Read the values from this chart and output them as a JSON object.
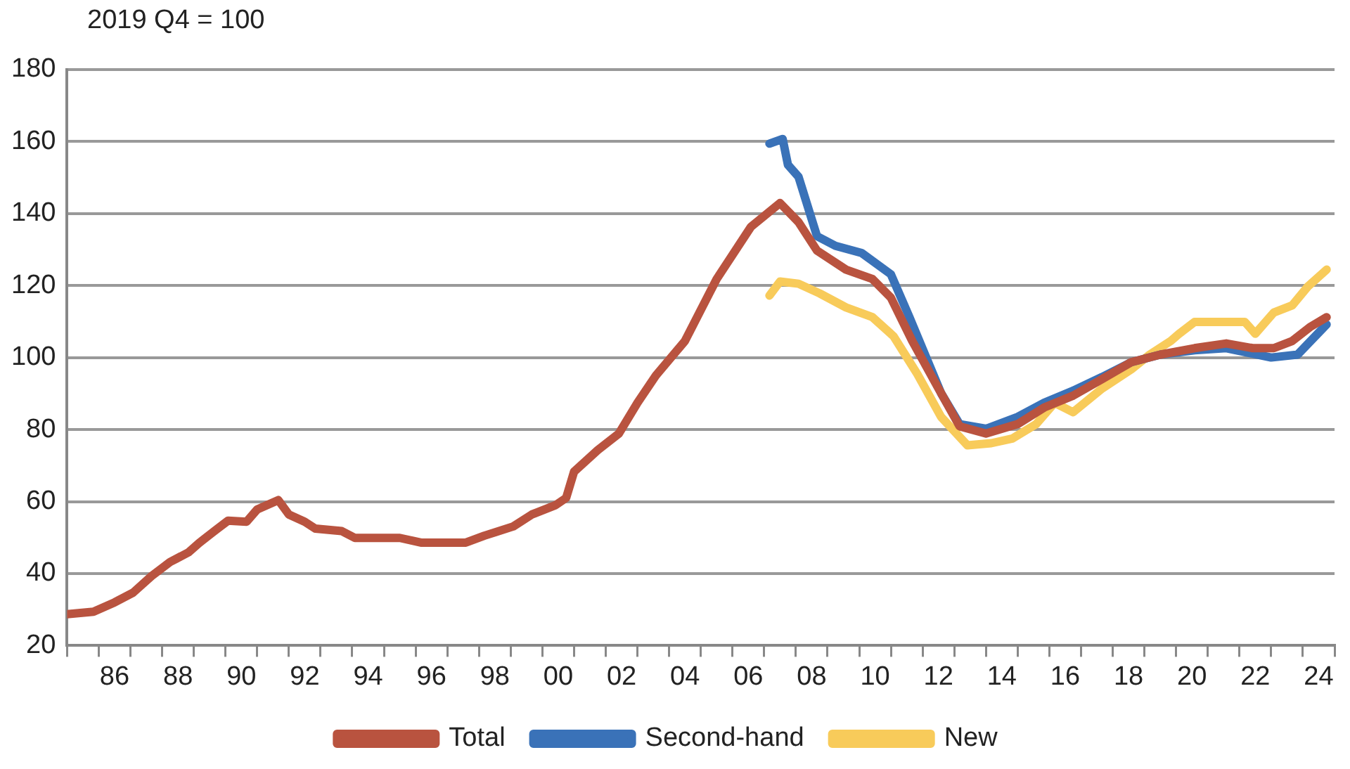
{
  "chart_data": {
    "type": "line",
    "ylabel": "2019 Q4 = 100",
    "legend": "bottom",
    "grid": "y",
    "xlim": [
      "1985-01",
      "2025-01"
    ],
    "ylim": [
      20,
      180
    ],
    "yticks": [
      20,
      40,
      60,
      80,
      100,
      120,
      140,
      160,
      180
    ],
    "xticks": [
      {
        "value": "1986-07",
        "label": "86"
      },
      {
        "value": "1988-07",
        "label": "88"
      },
      {
        "value": "1990-07",
        "label": "90"
      },
      {
        "value": "1992-07",
        "label": "92"
      },
      {
        "value": "1994-07",
        "label": "94"
      },
      {
        "value": "1996-07",
        "label": "96"
      },
      {
        "value": "1998-07",
        "label": "98"
      },
      {
        "value": "2000-07",
        "label": "00"
      },
      {
        "value": "2002-07",
        "label": "02"
      },
      {
        "value": "2004-07",
        "label": "04"
      },
      {
        "value": "2006-07",
        "label": "06"
      },
      {
        "value": "2008-07",
        "label": "08"
      },
      {
        "value": "2010-07",
        "label": "10"
      },
      {
        "value": "2012-07",
        "label": "12"
      },
      {
        "value": "2014-07",
        "label": "14"
      },
      {
        "value": "2016-07",
        "label": "16"
      },
      {
        "value": "2018-07",
        "label": "18"
      },
      {
        "value": "2020-07",
        "label": "20"
      },
      {
        "value": "2022-07",
        "label": "22"
      },
      {
        "value": "2024-07",
        "label": "24"
      },
      {
        "value": "1985-01",
        "label": null
      },
      {
        "value": "1986-01",
        "label": null
      },
      {
        "value": "1987-01",
        "label": null
      },
      {
        "value": "1988-01",
        "label": null
      },
      {
        "value": "1989-01",
        "label": null
      },
      {
        "value": "1990-01",
        "label": null
      },
      {
        "value": "1991-01",
        "label": null
      },
      {
        "value": "1992-01",
        "label": null
      },
      {
        "value": "1993-01",
        "label": null
      },
      {
        "value": "1994-01",
        "label": null
      },
      {
        "value": "1995-01",
        "label": null
      },
      {
        "value": "1996-01",
        "label": null
      },
      {
        "value": "1997-01",
        "label": null
      },
      {
        "value": "1998-01",
        "label": null
      },
      {
        "value": "1999-01",
        "label": null
      },
      {
        "value": "2000-01",
        "label": null
      },
      {
        "value": "2001-01",
        "label": null
      },
      {
        "value": "2002-01",
        "label": null
      },
      {
        "value": "2003-01",
        "label": null
      },
      {
        "value": "2004-01",
        "label": null
      },
      {
        "value": "2005-01",
        "label": null
      },
      {
        "value": "2006-01",
        "label": null
      },
      {
        "value": "2007-01",
        "label": null
      },
      {
        "value": "2008-01",
        "label": null
      },
      {
        "value": "2009-01",
        "label": null
      },
      {
        "value": "2010-01",
        "label": null
      },
      {
        "value": "2011-01",
        "label": null
      },
      {
        "value": "2012-01",
        "label": null
      },
      {
        "value": "2013-01",
        "label": null
      },
      {
        "value": "2014-01",
        "label": null
      },
      {
        "value": "2015-01",
        "label": null
      },
      {
        "value": "2016-01",
        "label": null
      },
      {
        "value": "2017-01",
        "label": null
      },
      {
        "value": "2018-01",
        "label": null
      },
      {
        "value": "2019-01",
        "label": null
      },
      {
        "value": "2020-01",
        "label": null
      },
      {
        "value": "2021-01",
        "label": null
      },
      {
        "value": "2022-01",
        "label": null
      },
      {
        "value": "2023-01",
        "label": null
      },
      {
        "value": "2024-01",
        "label": null
      },
      {
        "value": "2025-01",
        "label": null
      }
    ],
    "series": [
      {
        "name": "Total",
        "color": "#b9533f",
        "x": [
          "1985-01",
          "1985-11",
          "1986-07",
          "1987-02",
          "1987-09",
          "1988-04",
          "1988-11",
          "1989-03",
          "1989-10",
          "1990-02",
          "1990-09",
          "1991-01",
          "1991-09",
          "1992-01",
          "1992-07",
          "1992-11",
          "1993-09",
          "1994-02",
          "1995-07",
          "1996-03",
          "1997-08",
          "1998-03",
          "1999-02",
          "1999-09",
          "2000-06",
          "2000-10",
          "2001-01",
          "2001-10",
          "2002-06",
          "2003-01",
          "2003-08",
          "2004-07",
          "2005-07",
          "2006-08",
          "2007-07",
          "2008-02",
          "2008-09",
          "2009-08",
          "2010-06",
          "2011-01",
          "2011-09",
          "2012-07",
          "2013-03",
          "2014-01",
          "2015-01",
          "2015-11",
          "2016-10",
          "2017-09",
          "2018-08",
          "2019-07",
          "2020-08",
          "2021-08",
          "2022-06",
          "2023-02",
          "2023-09",
          "2024-04",
          "2024-10"
        ],
        "values": [
          28.7,
          29.4,
          32,
          34.7,
          39.3,
          43.2,
          45.9,
          48.5,
          52.5,
          54.7,
          54.4,
          57.8,
          60.4,
          56.4,
          54.4,
          52.5,
          51.8,
          49.9,
          49.9,
          48.6,
          48.6,
          50.5,
          53.1,
          56.4,
          59,
          61,
          68.3,
          74.3,
          78.9,
          87.4,
          95,
          104.6,
          121.8,
          136.3,
          142.9,
          137.6,
          129.7,
          124.4,
          121.8,
          116.6,
          104.7,
          91.4,
          80.9,
          78.9,
          81.5,
          86.1,
          89.4,
          94,
          98.7,
          100.8,
          102.6,
          103.9,
          102.6,
          102.6,
          104.6,
          108.6,
          111.2
        ]
      },
      {
        "name": "Second-hand",
        "color": "#3a72b8",
        "x": [
          "2007-03",
          "2007-08",
          "2007-10",
          "2008-02",
          "2008-09",
          "2009-04",
          "2010-02",
          "2011-01",
          "2011-08",
          "2012-08",
          "2013-03",
          "2014-01",
          "2015-01",
          "2015-11",
          "2016-10",
          "2017-09",
          "2018-08",
          "2019-07",
          "2020-08",
          "2021-08",
          "2023-01",
          "2023-11",
          "2024-10"
        ],
        "values": [
          159.4,
          160.7,
          153.5,
          150.2,
          133.7,
          131.0,
          129.0,
          123.1,
          111.2,
          90.1,
          81.5,
          80.2,
          83.5,
          87.4,
          90.8,
          94.6,
          98.7,
          100.8,
          102,
          102.6,
          100,
          100.8,
          109.2
        ]
      },
      {
        "name": "New",
        "color": "#f8cb5a",
        "x": [
          "2007-03",
          "2007-07",
          "2008-02",
          "2008-10",
          "2009-08",
          "2010-06",
          "2011-02",
          "2011-11",
          "2012-08",
          "2013-06",
          "2014-03",
          "2014-11",
          "2015-08",
          "2016-03",
          "2016-10",
          "2017-09",
          "2018-08",
          "2019-03",
          "2019-11",
          "2020-02",
          "2020-08",
          "2021-08",
          "2022-03",
          "2022-07",
          "2023-02",
          "2023-09",
          "2024-03",
          "2024-10"
        ],
        "values": [
          117.2,
          121.1,
          120.5,
          117.8,
          113.9,
          111.2,
          105.9,
          95.4,
          83.5,
          75.6,
          76.2,
          77.5,
          81.5,
          87.4,
          84.8,
          91.4,
          96.7,
          100.8,
          104.6,
          106.5,
          109.9,
          109.9,
          109.9,
          106.6,
          112.5,
          114.5,
          119.8,
          124.4
        ]
      }
    ]
  }
}
